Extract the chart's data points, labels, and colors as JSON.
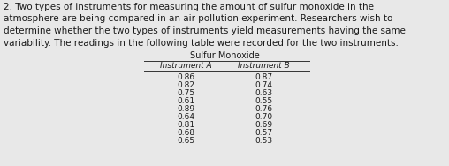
{
  "paragraph_lines": [
    "2. Two types of instruments for measuring the amount of sulfur monoxide in the",
    "atmosphere are being compared in an air-pollution experiment. Researchers wish to",
    "determine whether the two types of instruments yield measurements having the same",
    "variability. The readings in the following table were recorded for the two instruments."
  ],
  "table_title": "Sulfur Monoxide",
  "col_a_header": "Instrument A",
  "col_b_header": "Instrument B",
  "instrument_a": [
    "0.86",
    "0.82",
    "0.75",
    "0.61",
    "0.89",
    "0.64",
    "0.81",
    "0.68",
    "0.65"
  ],
  "instrument_b": [
    "0.87",
    "0.74",
    "0.63",
    "0.55",
    "0.76",
    "0.70",
    "0.69",
    "0.57",
    "0.53"
  ],
  "bg_color": "#e8e8e8",
  "text_color": "#1a1a1a",
  "font_size_para": 7.5,
  "font_size_table_title": 7.0,
  "font_size_table": 6.5
}
